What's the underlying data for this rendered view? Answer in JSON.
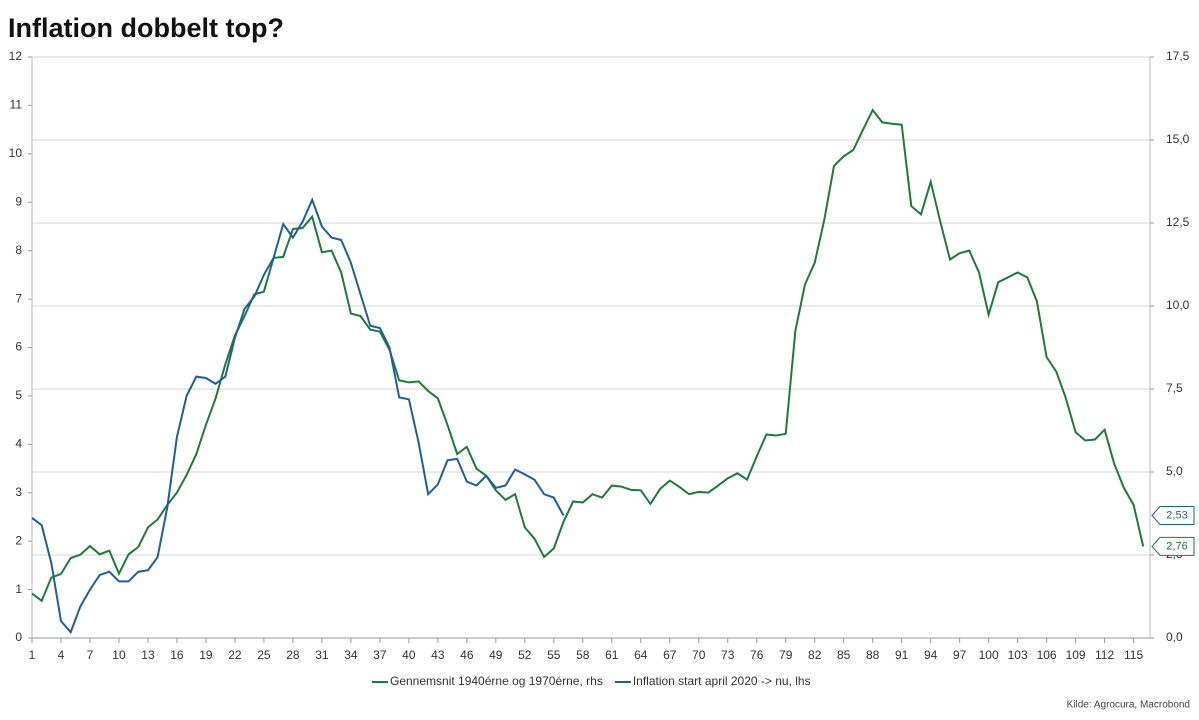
{
  "chart_data": {
    "type": "line",
    "title": "Inflation dobbelt top?",
    "source": "Kilde: Agrocura, Macrobond",
    "x": [
      1,
      2,
      3,
      4,
      5,
      6,
      7,
      8,
      9,
      10,
      11,
      12,
      13,
      14,
      15,
      16,
      17,
      18,
      19,
      20,
      21,
      22,
      23,
      24,
      25,
      26,
      27,
      28,
      29,
      30,
      31,
      32,
      33,
      34,
      35,
      36,
      37,
      38,
      39,
      40,
      41,
      42,
      43,
      44,
      45,
      46,
      47,
      48,
      49,
      50,
      51,
      52,
      53,
      54,
      55,
      56,
      57,
      58,
      59,
      60,
      61,
      62,
      63,
      64,
      65,
      66,
      67,
      68,
      69,
      70,
      71,
      72,
      73,
      74,
      75,
      76,
      77,
      78,
      79,
      80,
      81,
      82,
      83,
      84,
      85,
      86,
      87,
      88,
      89,
      90,
      91,
      92,
      93,
      94,
      95,
      96,
      97,
      98,
      99,
      100,
      101,
      102,
      103,
      104,
      105,
      106,
      107,
      108,
      109,
      110,
      111,
      112,
      113,
      114,
      115,
      116
    ],
    "xlim": [
      1,
      116.7
    ],
    "xticks": [
      1,
      4,
      7,
      10,
      13,
      16,
      19,
      22,
      25,
      28,
      31,
      34,
      37,
      40,
      43,
      46,
      49,
      52,
      55,
      58,
      61,
      64,
      67,
      70,
      73,
      76,
      79,
      82,
      85,
      88,
      91,
      94,
      97,
      100,
      103,
      106,
      109,
      112,
      115
    ],
    "ylim": [
      0,
      12
    ],
    "yticks": [
      0,
      1,
      2,
      3,
      4,
      5,
      6,
      7,
      8,
      9,
      10,
      11,
      12
    ],
    "y2lim": [
      0,
      17.5
    ],
    "y2ticks": [
      {
        "value": 0,
        "label": "0,0"
      },
      {
        "value": 2.5,
        "label": "2,5"
      },
      {
        "value": 5,
        "label": "5,0"
      },
      {
        "value": 7.5,
        "label": "7,5"
      },
      {
        "value": 10,
        "label": "10,0"
      },
      {
        "value": 12.5,
        "label": "12,5"
      },
      {
        "value": 15,
        "label": "15,0"
      },
      {
        "value": 17.5,
        "label": "17,5"
      }
    ],
    "grid": "y2",
    "legend": "bottom",
    "series": [
      {
        "name": "Gennemsnit 1940érne og 1970érne, rhs",
        "color": "#1e7b3a",
        "axis": "y2",
        "last_label": "2,76",
        "values": [
          1.34,
          1.12,
          1.82,
          1.93,
          2.41,
          2.51,
          2.77,
          2.52,
          2.63,
          1.94,
          2.52,
          2.74,
          3.33,
          3.57,
          4.01,
          4.38,
          4.91,
          5.54,
          6.42,
          7.22,
          8.24,
          9.11,
          9.7,
          10.35,
          10.43,
          11.45,
          11.48,
          12.32,
          12.35,
          12.69,
          11.62,
          11.67,
          11.01,
          9.77,
          9.7,
          9.29,
          9.23,
          8.68,
          7.76,
          7.7,
          7.73,
          7.44,
          7.22,
          6.42,
          5.54,
          5.76,
          5.1,
          4.89,
          4.45,
          4.16,
          4.33,
          3.33,
          2.99,
          2.44,
          2.7,
          3.5,
          4.11,
          4.08,
          4.33,
          4.23,
          4.59,
          4.56,
          4.46,
          4.45,
          4.04,
          4.49,
          4.74,
          4.55,
          4.33,
          4.4,
          4.38,
          4.59,
          4.81,
          4.96,
          4.77,
          5.47,
          6.13,
          6.1,
          6.15,
          9.26,
          10.65,
          11.3,
          12.61,
          14.22,
          14.51,
          14.7,
          15.31,
          15.9,
          15.53,
          15.49,
          15.46,
          13.01,
          12.76,
          13.74,
          12.54,
          11.4,
          11.59,
          11.67,
          11.01,
          9.74,
          10.72,
          10.86,
          11.01,
          10.86,
          10.14,
          8.46,
          8.02,
          7.22,
          6.2,
          5.95,
          5.98,
          6.27,
          5.25,
          4.52,
          4.01,
          2.76
        ]
      },
      {
        "name": "Inflation start april 2020 -> nu, lhs",
        "color": "#1f5f99",
        "axis": "y",
        "last_label": "2,53",
        "values": [
          2.48,
          2.33,
          1.55,
          0.35,
          0.12,
          0.65,
          1.0,
          1.3,
          1.37,
          1.17,
          1.17,
          1.37,
          1.4,
          1.67,
          2.7,
          4.15,
          5.0,
          5.4,
          5.37,
          5.25,
          5.4,
          6.2,
          6.8,
          7.05,
          7.5,
          7.85,
          8.55,
          8.27,
          8.6,
          9.05,
          8.5,
          8.27,
          8.22,
          7.75,
          7.1,
          6.45,
          6.4,
          6.0,
          4.97,
          4.93,
          4.05,
          2.97,
          3.17,
          3.67,
          3.7,
          3.23,
          3.15,
          3.35,
          3.1,
          3.15,
          3.48,
          3.38,
          3.27,
          2.97,
          2.9,
          2.53,
          null,
          null,
          null,
          null,
          null,
          null,
          null,
          null,
          null,
          null,
          null,
          null,
          null,
          null,
          null,
          null,
          null,
          null,
          null,
          null,
          null,
          null,
          null,
          null,
          null,
          null,
          null,
          null,
          null,
          null,
          null,
          null,
          null,
          null,
          null,
          null,
          null,
          null,
          null,
          null,
          null,
          null,
          null,
          null,
          null,
          null,
          null,
          null,
          null,
          null,
          null,
          null,
          null,
          null,
          null,
          null,
          null,
          null,
          null,
          null
        ]
      }
    ]
  }
}
